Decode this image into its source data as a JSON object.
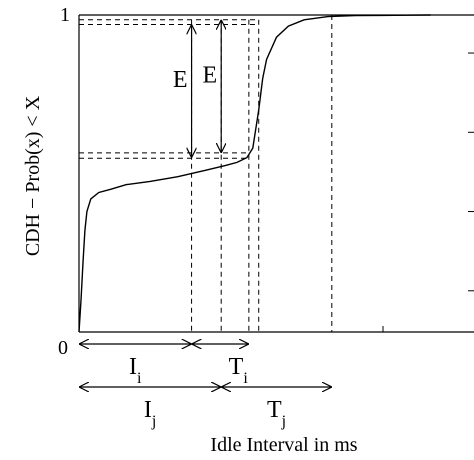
{
  "chart_data": {
    "type": "line",
    "title": "",
    "xlabel": "Idle Interval in ms",
    "ylabel": "CDH − Prob(x) < X",
    "xlim": [
      0,
      100
    ],
    "ylim": [
      0,
      1
    ],
    "grid": false,
    "y_ticks": [
      {
        "value": 0,
        "label": "0"
      },
      {
        "value": 1,
        "label": "1"
      }
    ],
    "series": [
      {
        "values": [
          [
            0.0,
            0.0
          ],
          [
            0.5,
            0.1
          ],
          [
            1.0,
            0.22
          ],
          [
            1.5,
            0.32
          ],
          [
            2.0,
            0.38
          ],
          [
            3.0,
            0.42
          ],
          [
            5.0,
            0.44
          ],
          [
            8.0,
            0.45
          ],
          [
            12.0,
            0.465
          ],
          [
            18.0,
            0.475
          ],
          [
            25.0,
            0.49
          ],
          [
            32.0,
            0.51
          ],
          [
            37.0,
            0.525
          ],
          [
            40.0,
            0.535
          ],
          [
            42.5,
            0.55
          ],
          [
            44.0,
            0.58
          ],
          [
            45.5,
            0.7
          ],
          [
            46.5,
            0.8
          ],
          [
            47.5,
            0.86
          ],
          [
            50.0,
            0.93
          ],
          [
            53.0,
            0.965
          ],
          [
            57.0,
            0.985
          ],
          [
            63.0,
            0.995
          ],
          [
            70.0,
            0.998
          ],
          [
            80.0,
            0.999
          ],
          [
            89.0,
            1.0
          ]
        ]
      }
    ],
    "guides": {
      "vertical_x": [
        28.5,
        36.0,
        43.0,
        45.5,
        64.0
      ],
      "horizontal_y": [
        0.548,
        0.565,
        0.97,
        0.985
      ]
    },
    "annotations": [
      {
        "type": "double_arrow_vertical",
        "x": 28.5,
        "y1": 0.55,
        "y2": 0.97,
        "label": "E"
      },
      {
        "type": "double_arrow_vertical",
        "x": 36.0,
        "y1": 0.565,
        "y2": 0.985,
        "label": "E"
      },
      {
        "type": "interval",
        "x1": 0,
        "x2": 28.5,
        "row": 1,
        "label": "I",
        "sub": "i"
      },
      {
        "type": "interval",
        "x1": 28.5,
        "x2": 43.0,
        "row": 1,
        "label": "T",
        "sub": "i"
      },
      {
        "type": "interval",
        "x1": 0,
        "x2": 36.0,
        "row": 2,
        "label": "I",
        "sub": "j"
      },
      {
        "type": "interval",
        "x1": 36.0,
        "x2": 64.0,
        "row": 2,
        "label": "T",
        "sub": "j"
      }
    ]
  }
}
